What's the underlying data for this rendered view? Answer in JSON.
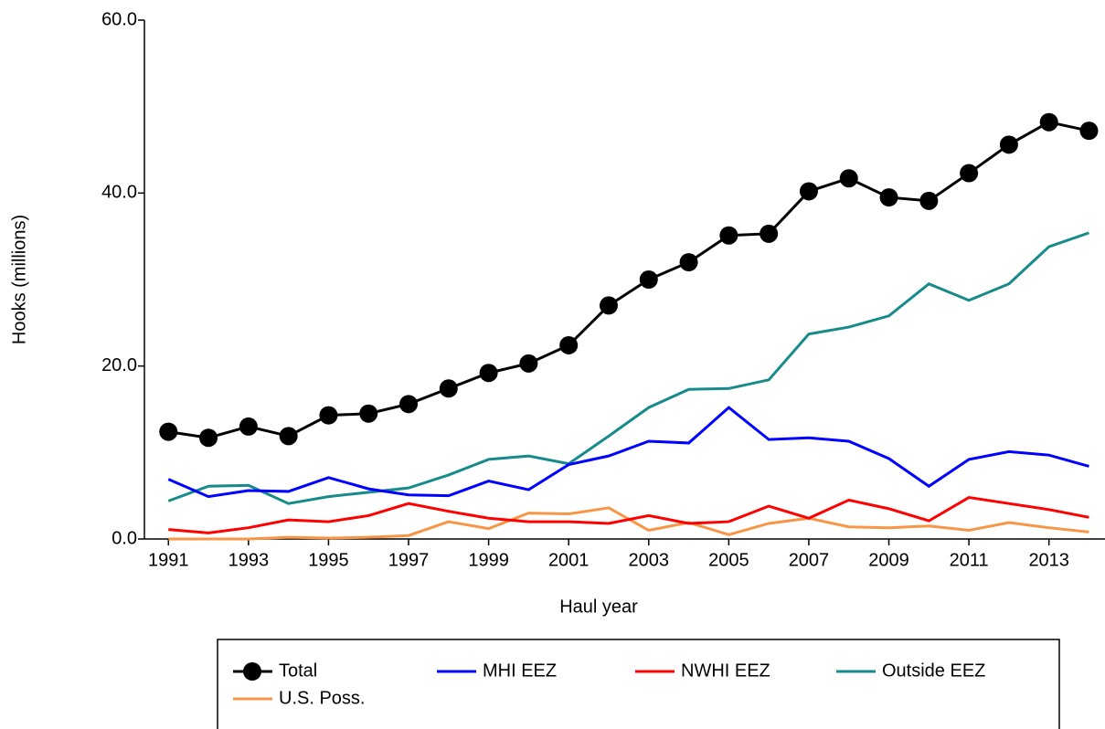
{
  "chart_data": {
    "type": "line",
    "x_label": "Haul year",
    "y_label": "Hooks (millions)",
    "x": [
      1991,
      1992,
      1993,
      1994,
      1995,
      1996,
      1997,
      1998,
      1999,
      2000,
      2001,
      2002,
      2003,
      2004,
      2005,
      2006,
      2007,
      2008,
      2009,
      2010,
      2011,
      2012,
      2013,
      2014
    ],
    "series": [
      {
        "name": "Total",
        "color": "#000000",
        "marker": "circle",
        "values": [
          12.4,
          11.7,
          13.0,
          11.9,
          14.3,
          14.5,
          15.6,
          17.4,
          19.2,
          20.3,
          22.4,
          27.0,
          30.0,
          32.0,
          35.1,
          35.3,
          40.2,
          41.7,
          39.5,
          39.1,
          42.3,
          45.6,
          48.2,
          47.2
        ]
      },
      {
        "name": "MHI EEZ",
        "color": "#0000ff",
        "values": [
          6.9,
          4.9,
          5.6,
          5.5,
          7.1,
          5.8,
          5.1,
          5.0,
          6.7,
          5.7,
          8.6,
          9.6,
          11.3,
          11.1,
          15.2,
          11.5,
          11.7,
          11.3,
          9.3,
          6.1,
          9.2,
          10.1,
          9.7,
          8.4
        ]
      },
      {
        "name": "NWHI EEZ",
        "color": "#ff0000",
        "values": [
          1.1,
          0.7,
          1.3,
          2.2,
          2.0,
          2.7,
          4.1,
          3.2,
          2.4,
          2.0,
          2.0,
          1.8,
          2.7,
          1.8,
          2.0,
          3.8,
          2.4,
          4.5,
          3.5,
          2.1,
          4.8,
          4.1,
          3.4,
          2.5
        ]
      },
      {
        "name": "Outside EEZ",
        "color": "#178a8a",
        "values": [
          4.4,
          6.1,
          6.2,
          4.1,
          4.9,
          5.4,
          5.9,
          7.4,
          9.2,
          9.6,
          8.7,
          11.9,
          15.2,
          17.3,
          17.4,
          18.4,
          23.7,
          24.5,
          25.8,
          29.5,
          27.6,
          29.5,
          33.8,
          35.4
        ]
      },
      {
        "name": "U.S. Poss.",
        "color": "#f79646",
        "values": [
          0.0,
          0.0,
          0.0,
          0.2,
          0.1,
          0.2,
          0.4,
          2.0,
          1.2,
          3.0,
          2.9,
          3.6,
          1.0,
          1.9,
          0.5,
          1.8,
          2.4,
          1.4,
          1.3,
          1.5,
          1.0,
          1.9,
          1.3,
          0.8
        ]
      }
    ],
    "xlim": [
      1990.4,
      2014.4
    ],
    "xticks": [
      1991,
      1993,
      1995,
      1997,
      1999,
      2001,
      2003,
      2005,
      2007,
      2009,
      2011,
      2013
    ],
    "ylim": [
      0,
      60
    ],
    "yticks": [
      {
        "value": 0,
        "label": "0.0"
      },
      {
        "value": 20,
        "label": "20.0"
      },
      {
        "value": 40,
        "label": "40.0"
      },
      {
        "value": 60,
        "label": "60.0"
      }
    ],
    "grid": false,
    "legend": "bottom"
  }
}
